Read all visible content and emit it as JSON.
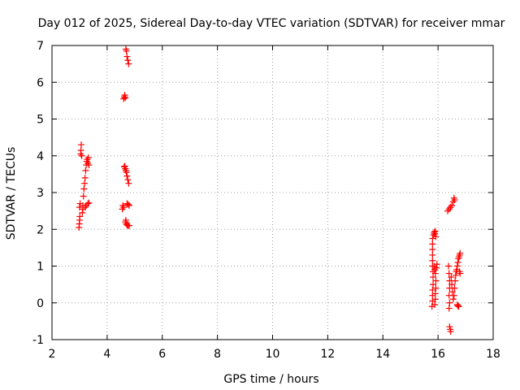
{
  "chart_data": {
    "type": "scatter",
    "title": "Day 012 of 2025, Sidereal Day-to-day VTEC variation (SDTVAR) for receiver mmar",
    "xlabel": "GPS time / hours",
    "ylabel": "SDTVAR / TECUs",
    "xlim": [
      2,
      18
    ],
    "ylim": [
      -1,
      7
    ],
    "xticks": [
      2,
      4,
      6,
      8,
      10,
      12,
      14,
      16,
      18
    ],
    "yticks": [
      -1,
      0,
      1,
      2,
      3,
      4,
      5,
      6,
      7
    ],
    "grid": true,
    "marker": "+",
    "series": [
      {
        "name": "SDTVAR",
        "color": "#ff0000",
        "points": [
          [
            2.98,
            2.05
          ],
          [
            2.99,
            2.15
          ],
          [
            3.0,
            2.25
          ],
          [
            3.01,
            2.35
          ],
          [
            3.0,
            2.6
          ],
          [
            3.02,
            2.7
          ],
          [
            3.04,
            4.05
          ],
          [
            3.05,
            4.15
          ],
          [
            3.06,
            4.3
          ],
          [
            3.08,
            4.0
          ],
          [
            3.1,
            2.45
          ],
          [
            3.12,
            2.55
          ],
          [
            3.12,
            2.65
          ],
          [
            3.14,
            2.9
          ],
          [
            3.16,
            3.1
          ],
          [
            3.18,
            3.25
          ],
          [
            3.2,
            3.4
          ],
          [
            3.22,
            3.6
          ],
          [
            3.24,
            3.75
          ],
          [
            3.26,
            3.85
          ],
          [
            3.28,
            3.9
          ],
          [
            3.3,
            3.8
          ],
          [
            3.32,
            3.95
          ],
          [
            3.34,
            3.75
          ],
          [
            3.2,
            2.6
          ],
          [
            3.24,
            2.65
          ],
          [
            3.3,
            2.7
          ],
          [
            3.34,
            2.72
          ],
          [
            4.55,
            2.55
          ],
          [
            4.57,
            2.65
          ],
          [
            4.6,
            2.6
          ],
          [
            4.62,
            3.7
          ],
          [
            4.64,
            3.72
          ],
          [
            4.66,
            3.65
          ],
          [
            4.68,
            3.6
          ],
          [
            4.7,
            3.55
          ],
          [
            4.72,
            3.45
          ],
          [
            4.75,
            3.35
          ],
          [
            4.78,
            3.25
          ],
          [
            4.6,
            5.55
          ],
          [
            4.62,
            5.6
          ],
          [
            4.64,
            5.65
          ],
          [
            4.66,
            5.58
          ],
          [
            4.68,
            6.9
          ],
          [
            4.7,
            6.85
          ],
          [
            4.72,
            6.7
          ],
          [
            4.75,
            6.6
          ],
          [
            4.78,
            6.5
          ],
          [
            4.66,
            2.2
          ],
          [
            4.68,
            2.25
          ],
          [
            4.7,
            2.15
          ],
          [
            4.72,
            2.12
          ],
          [
            4.76,
            2.1
          ],
          [
            4.8,
            2.1
          ],
          [
            4.72,
            2.7
          ],
          [
            4.76,
            2.68
          ],
          [
            4.8,
            2.65
          ],
          [
            15.78,
            -0.1
          ],
          [
            15.8,
            0.05
          ],
          [
            15.8,
            0.2
          ],
          [
            15.8,
            0.35
          ],
          [
            15.82,
            0.5
          ],
          [
            15.82,
            0.7
          ],
          [
            15.82,
            0.85
          ],
          [
            15.8,
            1.0
          ],
          [
            15.8,
            1.15
          ],
          [
            15.8,
            1.3
          ],
          [
            15.8,
            1.45
          ],
          [
            15.8,
            1.6
          ],
          [
            15.8,
            1.75
          ],
          [
            15.84,
            1.85
          ],
          [
            15.86,
            1.92
          ],
          [
            15.88,
            1.88
          ],
          [
            15.9,
            1.95
          ],
          [
            15.92,
            1.8
          ],
          [
            15.86,
            1.0
          ],
          [
            15.88,
            0.9
          ],
          [
            15.9,
            0.8
          ],
          [
            15.92,
            0.6
          ],
          [
            15.92,
            0.4
          ],
          [
            15.9,
            0.25
          ],
          [
            15.9,
            0.1
          ],
          [
            15.88,
            -0.05
          ],
          [
            15.94,
            0.95
          ],
          [
            15.96,
            1.05
          ],
          [
            16.35,
            2.5
          ],
          [
            16.4,
            2.55
          ],
          [
            16.45,
            2.6
          ],
          [
            16.5,
            2.65
          ],
          [
            16.55,
            2.75
          ],
          [
            16.58,
            2.85
          ],
          [
            16.6,
            2.8
          ],
          [
            16.38,
            1.0
          ],
          [
            16.4,
            0.8
          ],
          [
            16.42,
            0.6
          ],
          [
            16.42,
            0.4
          ],
          [
            16.4,
            0.2
          ],
          [
            16.42,
            0.0
          ],
          [
            16.4,
            -0.15
          ],
          [
            16.42,
            -0.65
          ],
          [
            16.44,
            -0.72
          ],
          [
            16.46,
            -0.78
          ],
          [
            16.48,
            0.7
          ],
          [
            16.5,
            0.5
          ],
          [
            16.52,
            0.3
          ],
          [
            16.55,
            0.1
          ],
          [
            16.58,
            0.2
          ],
          [
            16.6,
            0.4
          ],
          [
            16.62,
            0.6
          ],
          [
            16.64,
            0.75
          ],
          [
            16.66,
            0.85
          ],
          [
            16.68,
            0.9
          ],
          [
            16.7,
            -0.05
          ],
          [
            16.72,
            -0.08
          ],
          [
            16.75,
            -0.1
          ],
          [
            16.7,
            1.0
          ],
          [
            16.72,
            1.1
          ],
          [
            16.74,
            1.2
          ],
          [
            16.76,
            1.25
          ],
          [
            16.78,
            1.3
          ],
          [
            16.8,
            1.35
          ],
          [
            16.78,
            0.85
          ],
          [
            16.8,
            0.8
          ]
        ]
      }
    ]
  }
}
